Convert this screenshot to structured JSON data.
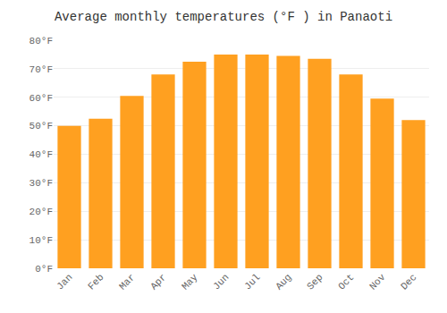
{
  "chart_data": {
    "type": "bar",
    "title": "Average monthly temperatures (°F ) in Panaoti",
    "categories": [
      "Jan",
      "Feb",
      "Mar",
      "Apr",
      "May",
      "Jun",
      "Jul",
      "Aug",
      "Sep",
      "Oct",
      "Nov",
      "Dec"
    ],
    "values": [
      50,
      52.5,
      60.5,
      68,
      72.5,
      75,
      75,
      74.5,
      73.5,
      68,
      59.5,
      52
    ],
    "color": "#FFA020",
    "ylim": [
      0,
      80
    ],
    "yticks": [
      {
        "value": 0,
        "label": "0°F"
      },
      {
        "value": 10,
        "label": "10°F"
      },
      {
        "value": 20,
        "label": "20°F"
      },
      {
        "value": 30,
        "label": "30°F"
      },
      {
        "value": 40,
        "label": "40°F"
      },
      {
        "value": 50,
        "label": "50°F"
      },
      {
        "value": 60,
        "label": "60°F"
      },
      {
        "value": 70,
        "label": "70°F"
      },
      {
        "value": 80,
        "label": "80°F"
      }
    ],
    "grid": true
  }
}
